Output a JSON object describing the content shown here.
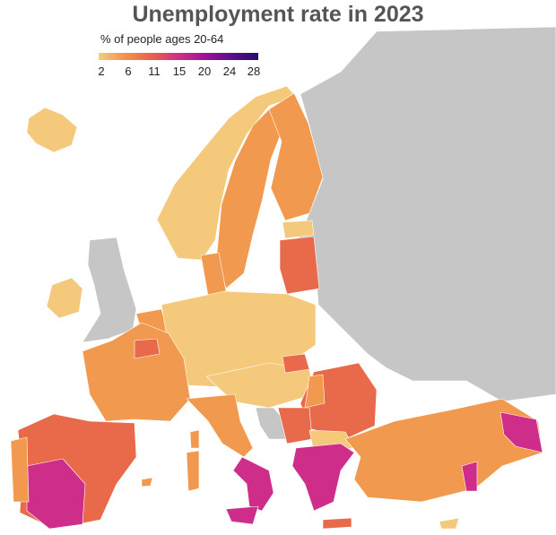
{
  "title": "Unemployment rate in 2023",
  "legend": {
    "subtitle": "% of people ages 20-64",
    "ticks": [
      "2",
      "6",
      "11",
      "15",
      "20",
      "24",
      "28"
    ],
    "range": [
      2,
      28
    ],
    "gradient": [
      "#f3cd7d",
      "#f2924f",
      "#e8604f",
      "#cf2f86",
      "#a0119a",
      "#5a0f8c",
      "#2b0a70"
    ]
  },
  "colors": {
    "no_data": "#c6c6c6",
    "low": "#f5c97c",
    "mid": "#f19a4f",
    "high": "#e96a4b",
    "very_high": "#cf2d8a",
    "sea": "#ffffff"
  }
}
